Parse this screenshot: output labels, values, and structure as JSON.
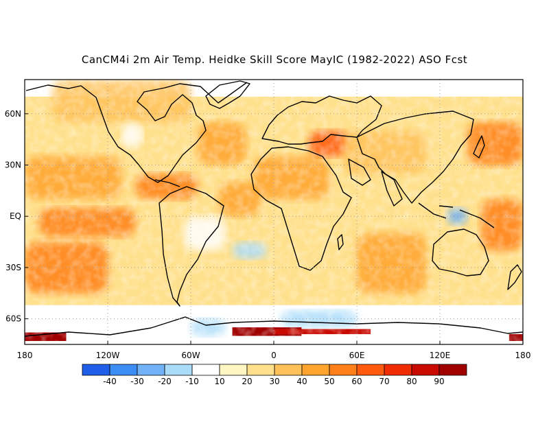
{
  "title": "CanCM4i 2m Air Temp. Heidke Skill Score MayIC (1982-2022) ASO Fcst",
  "map": {
    "lon_range": [
      -180,
      180
    ],
    "lat_range": [
      -75,
      80
    ],
    "grid": "dotted",
    "x_ticks": [
      {
        "lon": -180,
        "label": "180"
      },
      {
        "lon": -120,
        "label": "120W"
      },
      {
        "lon": -60,
        "label": "60W"
      },
      {
        "lon": 0,
        "label": "0"
      },
      {
        "lon": 60,
        "label": "60E"
      },
      {
        "lon": 120,
        "label": "120E"
      },
      {
        "lon": 180,
        "label": "180"
      }
    ],
    "y_ticks": [
      {
        "lat": 60,
        "label": "60N"
      },
      {
        "lat": 30,
        "label": "30N"
      },
      {
        "lat": 0,
        "label": "EQ"
      },
      {
        "lat": -30,
        "label": "30S"
      },
      {
        "lat": -60,
        "label": "60S"
      }
    ]
  },
  "colorbar": {
    "bins": [
      {
        "color": "#1f5fe8"
      },
      {
        "color": "#3c8ef5"
      },
      {
        "color": "#72b2f7"
      },
      {
        "color": "#aadcf9"
      },
      {
        "color": "#ffffff"
      },
      {
        "color": "#fff6c3"
      },
      {
        "color": "#ffe08c"
      },
      {
        "color": "#ffc25a"
      },
      {
        "color": "#ffa42e"
      },
      {
        "color": "#ff8019"
      },
      {
        "color": "#ff5a0e"
      },
      {
        "color": "#f02c05"
      },
      {
        "color": "#c80a00"
      },
      {
        "color": "#a00000"
      }
    ],
    "labels": [
      "-40",
      "-30",
      "-20",
      "-10",
      "10",
      "20",
      "30",
      "40",
      "50",
      "60",
      "70",
      "80",
      "90"
    ]
  },
  "chart_data": {
    "type": "heatmap",
    "title": "CanCM4i 2m Air Temp. Heidke Skill Score MayIC (1982-2022) ASO Fcst",
    "x_range": [
      -180,
      180
    ],
    "y_range": [
      -75,
      80
    ],
    "levels": [
      -40,
      -30,
      -20,
      -10,
      10,
      20,
      30,
      40,
      50,
      60,
      70,
      80,
      90
    ],
    "regions": [
      {
        "lon": [
          -180,
          180
        ],
        "lat": [
          -52,
          70
        ],
        "score": 25
      },
      {
        "lon": [
          -180,
          -120
        ],
        "lat": [
          -45,
          -15
        ],
        "score": 50
      },
      {
        "lon": [
          -180,
          -110
        ],
        "lat": [
          10,
          35
        ],
        "score": 45
      },
      {
        "lon": [
          -170,
          -100
        ],
        "lat": [
          -12,
          5
        ],
        "score": 50
      },
      {
        "lon": [
          -100,
          -55
        ],
        "lat": [
          10,
          25
        ],
        "score": 55
      },
      {
        "lon": [
          -160,
          -60
        ],
        "lat": [
          55,
          80
        ],
        "score": 35
      },
      {
        "lon": [
          -55,
          -20
        ],
        "lat": [
          30,
          55
        ],
        "score": 45
      },
      {
        "lon": [
          -40,
          -10
        ],
        "lat": [
          0,
          20
        ],
        "score": 40
      },
      {
        "lon": [
          -15,
          40
        ],
        "lat": [
          10,
          35
        ],
        "score": 40
      },
      {
        "lon": [
          25,
          55
        ],
        "lat": [
          35,
          50
        ],
        "score": 60
      },
      {
        "lon": [
          50,
          110
        ],
        "lat": [
          25,
          50
        ],
        "score": 35
      },
      {
        "lon": [
          60,
          110
        ],
        "lat": [
          -45,
          -10
        ],
        "score": 40
      },
      {
        "lon": [
          150,
          180
        ],
        "lat": [
          -20,
          10
        ],
        "score": 55
      },
      {
        "lon": [
          140,
          180
        ],
        "lat": [
          30,
          55
        ],
        "score": 50
      },
      {
        "lon": [
          -65,
          -35
        ],
        "lat": [
          -20,
          0
        ],
        "score": 5
      },
      {
        "lon": [
          -110,
          -95
        ],
        "lat": [
          40,
          55
        ],
        "score": 5
      },
      {
        "lon": [
          -30,
          -5
        ],
        "lat": [
          -25,
          -15
        ],
        "score": -15
      },
      {
        "lon": [
          5,
          60
        ],
        "lat": [
          -65,
          -55
        ],
        "score": -20
      },
      {
        "lon": [
          -60,
          -35
        ],
        "lat": [
          -70,
          -60
        ],
        "score": -15
      },
      {
        "lon": [
          125,
          140
        ],
        "lat": [
          -5,
          5
        ],
        "score": -25
      },
      {
        "lon": [
          -180,
          -150
        ],
        "lat": [
          -73,
          -68
        ],
        "score": 90
      },
      {
        "lon": [
          -30,
          20
        ],
        "lat": [
          -70,
          -65
        ],
        "score": 90
      },
      {
        "lon": [
          0,
          70
        ],
        "lat": [
          -69,
          -66
        ],
        "score": 85
      },
      {
        "lon": [
          170,
          180
        ],
        "lat": [
          -73,
          -69
        ],
        "score": 90
      }
    ]
  }
}
